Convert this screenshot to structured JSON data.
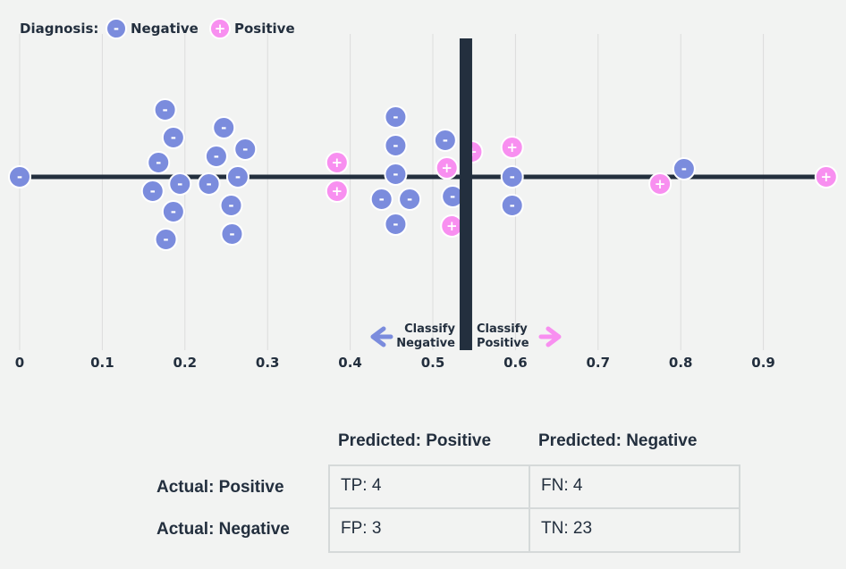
{
  "legend": {
    "title": "Diagnosis:",
    "items": [
      {
        "label": "Negative",
        "symbol": "-",
        "color": "#7b8cdd"
      },
      {
        "label": "Positive",
        "symbol": "+",
        "color": "#f88ff0"
      }
    ]
  },
  "threshold": {
    "value": 0.54,
    "left_label": [
      "Classify",
      "Negative"
    ],
    "right_label": [
      "Classify",
      "Positive"
    ],
    "left_arrow_color": "#7b8cdd",
    "right_arrow_color": "#f88ff0"
  },
  "chart_data": {
    "type": "scatter",
    "xlim": [
      0,
      0.97
    ],
    "x_ticks": [
      "0",
      "0.1",
      "0.2",
      "0.3",
      "0.4",
      "0.5",
      "0.6",
      "0.7",
      "0.8",
      "0.9"
    ],
    "x_tick_values": [
      0,
      0.1,
      0.2,
      0.3,
      0.4,
      0.5,
      0.6,
      0.7,
      0.8,
      0.9
    ],
    "grid": true,
    "points": [
      {
        "x": 0.0,
        "class": "negative"
      },
      {
        "x": 0.176,
        "class": "negative"
      },
      {
        "x": 0.186,
        "class": "negative"
      },
      {
        "x": 0.168,
        "class": "negative"
      },
      {
        "x": 0.194,
        "class": "negative"
      },
      {
        "x": 0.161,
        "class": "negative"
      },
      {
        "x": 0.186,
        "class": "negative"
      },
      {
        "x": 0.177,
        "class": "negative"
      },
      {
        "x": 0.247,
        "class": "negative"
      },
      {
        "x": 0.273,
        "class": "negative"
      },
      {
        "x": 0.238,
        "class": "negative"
      },
      {
        "x": 0.264,
        "class": "negative"
      },
      {
        "x": 0.229,
        "class": "negative"
      },
      {
        "x": 0.256,
        "class": "negative"
      },
      {
        "x": 0.257,
        "class": "negative"
      },
      {
        "x": 0.384,
        "class": "positive"
      },
      {
        "x": 0.384,
        "class": "positive"
      },
      {
        "x": 0.455,
        "class": "negative"
      },
      {
        "x": 0.455,
        "class": "negative"
      },
      {
        "x": 0.455,
        "class": "negative"
      },
      {
        "x": 0.438,
        "class": "negative"
      },
      {
        "x": 0.472,
        "class": "negative"
      },
      {
        "x": 0.455,
        "class": "negative"
      },
      {
        "x": 0.515,
        "class": "negative"
      },
      {
        "x": 0.517,
        "class": "positive"
      },
      {
        "x": 0.524,
        "class": "negative"
      },
      {
        "x": 0.523,
        "class": "positive"
      },
      {
        "x": 0.547,
        "class": "positive"
      },
      {
        "x": 0.596,
        "class": "positive"
      },
      {
        "x": 0.596,
        "class": "negative"
      },
      {
        "x": 0.596,
        "class": "negative"
      },
      {
        "x": 0.775,
        "class": "positive"
      },
      {
        "x": 0.804,
        "class": "negative"
      },
      {
        "x": 0.976,
        "class": "positive"
      }
    ]
  },
  "confusion_matrix": {
    "col_headers": [
      "Predicted: Positive",
      "Predicted: Negative"
    ],
    "row_headers": [
      "Actual: Positive",
      "Actual: Negative"
    ],
    "cells": [
      [
        "TP: 4",
        "FN: 4"
      ],
      [
        "FP: 3",
        "TN: 23"
      ]
    ]
  }
}
